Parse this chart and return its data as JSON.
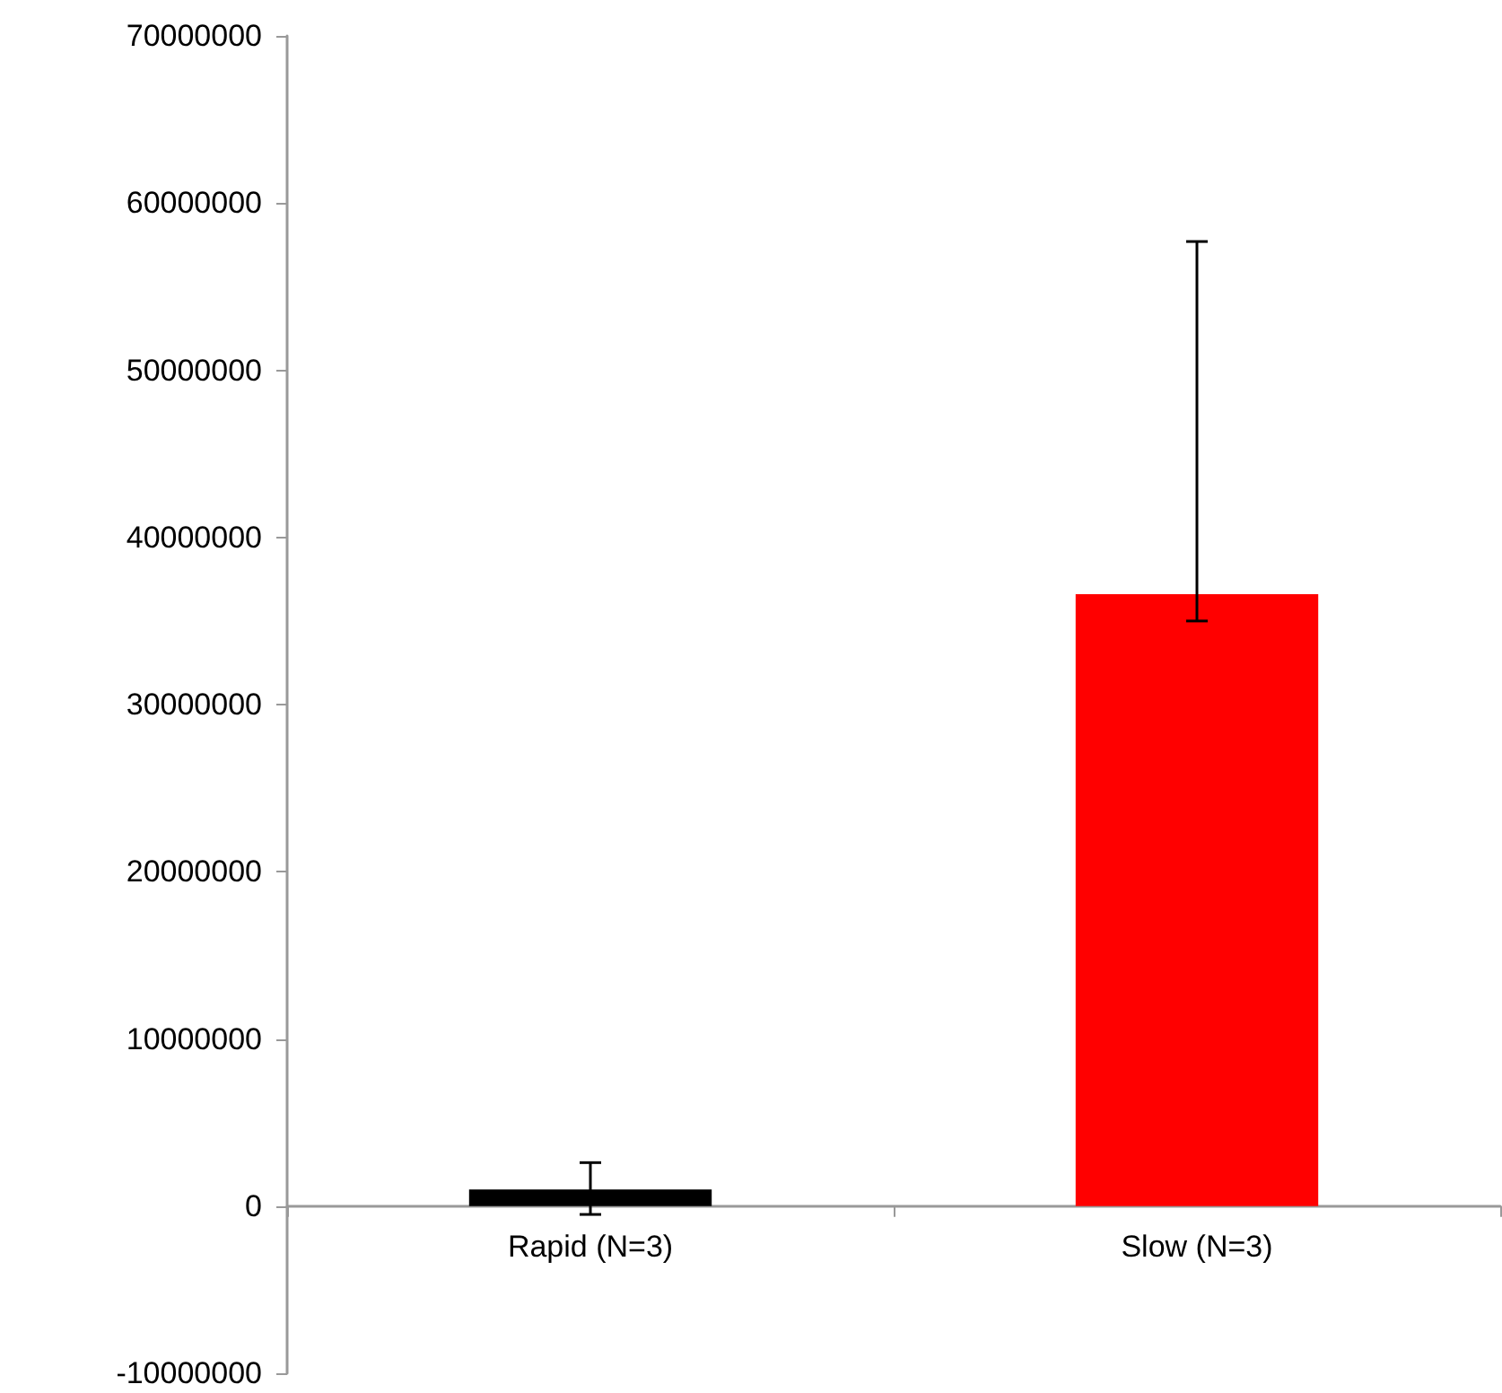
{
  "chart_data": {
    "type": "bar",
    "categories": [
      "Rapid (N=3)",
      "Slow (N=3)"
    ],
    "values": [
      1000000,
      36600000
    ],
    "colors": [
      "#000000",
      "#ff0000"
    ],
    "errors": [
      [
        -500000,
        2600000
      ],
      [
        35000000,
        57700000
      ]
    ],
    "ylim": [
      -10000000,
      70000000
    ],
    "yticks": [
      -10000000,
      0,
      10000000,
      20000000,
      30000000,
      40000000,
      50000000,
      60000000,
      70000000
    ]
  }
}
